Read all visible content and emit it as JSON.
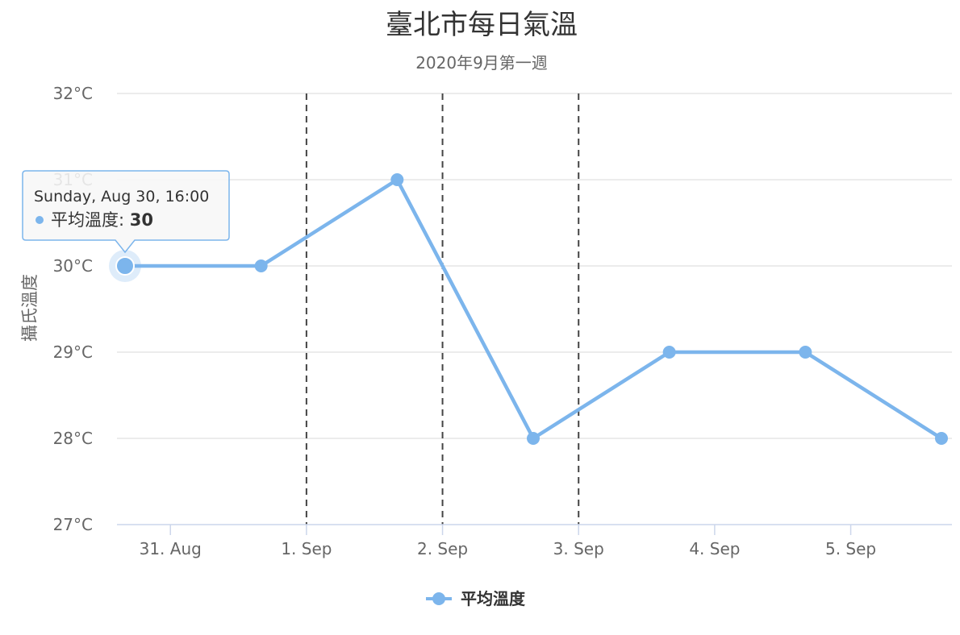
{
  "chart_data": {
    "type": "line",
    "title": "臺北市每日氣溫",
    "subtitle": "2020年9月第一週",
    "ylabel": "攝氏溫度",
    "xlabel": "",
    "ylim": [
      27,
      32
    ],
    "y_ticks": [
      "27°C",
      "28°C",
      "29°C",
      "30°C",
      "31°C",
      "32°C"
    ],
    "x_ticks": [
      "31. Aug",
      "1. Sep",
      "2. Sep",
      "3. Sep",
      "4. Sep",
      "5. Sep"
    ],
    "x_range": [
      "2020-08-30T16:00",
      "2020-09-05T16:00"
    ],
    "series": [
      {
        "name": "平均溫度",
        "color": "#7cb5ec",
        "x": [
          "2020-08-30T16:00",
          "2020-08-31T16:00",
          "2020-09-01T16:00",
          "2020-09-02T16:00",
          "2020-09-03T16:00",
          "2020-09-04T16:00",
          "2020-09-05T16:00"
        ],
        "values": [
          30,
          30,
          31,
          28,
          29,
          29,
          28
        ]
      }
    ],
    "plot_lines_x": [
      "2020-09-01T00:00",
      "2020-09-02T00:00",
      "2020-09-03T00:00"
    ],
    "grid": true,
    "legend": "bottom-center",
    "tooltip": {
      "header": "Sunday, Aug 30, 16:00",
      "series_label": "平均溫度",
      "value": "30",
      "point_index": 0
    }
  }
}
